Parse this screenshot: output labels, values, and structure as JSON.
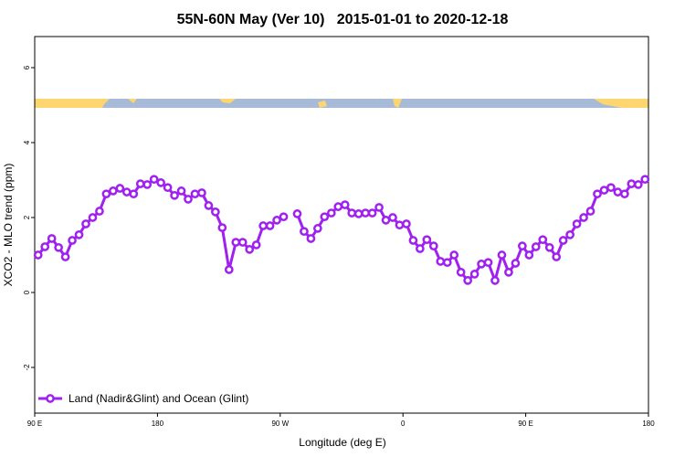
{
  "chart_data": {
    "type": "line",
    "title": "55N-60N May (Ver 10)   2015-01-01 to 2020-12-18",
    "xlabel": "Longitude (deg E)",
    "ylabel": "XCO2 - MLO trend (ppm)",
    "x": [
      92.5,
      97.5,
      102.5,
      107.5,
      112.5,
      117.5,
      122.5,
      127.5,
      132.5,
      137.5,
      142.5,
      147.5,
      152.5,
      157.5,
      162.5,
      167.5,
      172.5,
      177.5,
      182.5,
      187.5,
      192.5,
      197.5,
      202.5,
      207.5,
      212.5,
      217.5,
      222.5,
      227.5,
      232.5,
      237.5,
      242.5,
      247.5,
      252.5,
      257.5,
      262.5,
      267.5,
      272.5,
      277.5,
      282.5,
      287.5,
      292.5,
      297.5,
      302.5,
      307.5,
      312.5,
      317.5,
      322.5,
      327.5,
      332.5,
      337.5,
      342.5,
      347.5,
      352.5,
      357.5,
      362.5,
      367.5,
      372.5,
      377.5,
      382.5,
      387.5,
      392.5,
      397.5,
      402.5,
      407.5,
      412.5,
      417.5,
      422.5,
      427.5,
      432.5,
      437.5,
      442.5,
      447.5,
      452.5,
      457.5,
      462.5,
      467.5,
      472.5,
      477.5,
      482.5,
      487.5,
      492.5,
      497.5,
      502.5,
      507.5,
      512.5,
      517.5,
      522.5,
      527.5,
      532.5,
      537.5
    ],
    "series": [
      {
        "name": "Land (Nadir&Glint) and Ocean (Glint)",
        "color": "#a020f0",
        "values": [
          1.0,
          1.22,
          1.44,
          1.2,
          0.95,
          1.39,
          1.54,
          1.83,
          2.0,
          2.17,
          2.63,
          2.71,
          2.78,
          2.68,
          2.63,
          2.9,
          2.88,
          3.02,
          2.93,
          2.8,
          2.59,
          2.71,
          2.49,
          2.63,
          2.66,
          2.32,
          2.15,
          1.73,
          0.61,
          1.34,
          1.34,
          1.15,
          1.27,
          1.78,
          1.78,
          1.93,
          2.02,
          null,
          2.1,
          1.63,
          1.44,
          1.71,
          2.02,
          2.12,
          2.29,
          2.34,
          2.12,
          2.1,
          2.12,
          2.12,
          2.27,
          1.93,
          2.0,
          1.8,
          1.83,
          1.39,
          1.17,
          1.41,
          1.24,
          0.83,
          0.8,
          1.0,
          0.54,
          0.32,
          0.49,
          0.76,
          0.8,
          0.32,
          1.0,
          0.54,
          0.78,
          1.24,
          1.0,
          1.22,
          1.41,
          1.2,
          0.95,
          1.39,
          1.54,
          1.83,
          2.0,
          2.17,
          2.63,
          2.73,
          2.8,
          2.68,
          2.63,
          2.9,
          2.88,
          3.02
        ]
      }
    ],
    "xlim": [
      90,
      540
    ],
    "xticks": [
      {
        "value": 90,
        "label": "90 E"
      },
      180,
      {
        "value": 270,
        "label": "90 W"
      },
      {
        "value": 360,
        "label": "0"
      },
      {
        "value": 450,
        "label": "90 E"
      },
      {
        "value": 540,
        "label": "180"
      }
    ],
    "ylim": [
      -3.22,
      6.83
    ],
    "yticks": [
      -2,
      0,
      2,
      4,
      6
    ],
    "legend": "bottom-left"
  }
}
